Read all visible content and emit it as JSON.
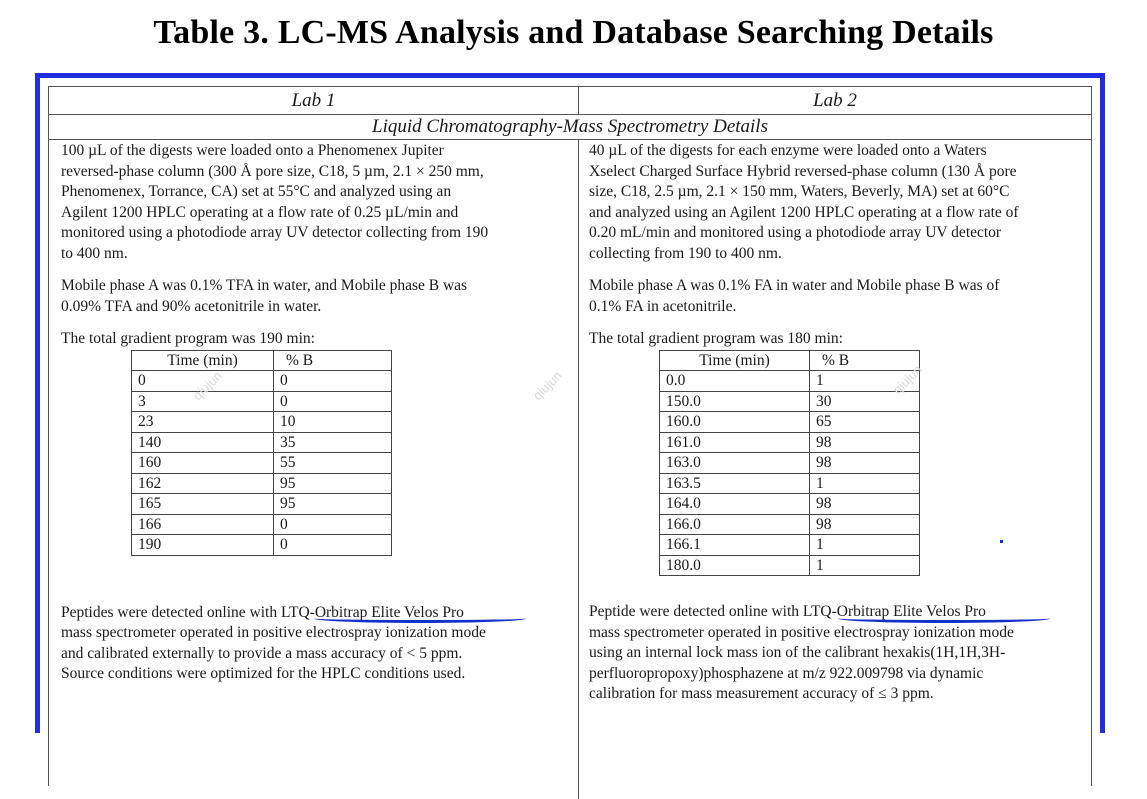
{
  "title": "Table 3. LC-MS Analysis and Database Searching Details",
  "columns": {
    "left_header": "Lab 1",
    "right_header": "Lab 2"
  },
  "section_title": "Liquid Chromatography-Mass Spectrometry Details",
  "lab1": {
    "para1_lines": [
      "100 µL of the digests were loaded onto a Phenomenex Jupiter",
      "reversed-phase column (300 Å pore size, C18, 5 µm, 2.1 × 250 mm,",
      "Phenomenex, Torrance, CA) set at 55°C and analyzed using an",
      "Agilent 1200 HPLC operating at a flow rate of 0.25 µL/min and",
      "monitored using a photodiode array UV detector collecting from 190",
      "to 400 nm."
    ],
    "para2_lines": [
      "Mobile phase A was 0.1% TFA in water, and Mobile phase B was",
      "0.09% TFA and 90% acetonitrile in water."
    ],
    "gradient_text": "The total gradient program was 190 min:",
    "gradient_headers": [
      "Time (min)",
      "% B"
    ],
    "gradient_rows": [
      [
        "0",
        "0"
      ],
      [
        "3",
        "0"
      ],
      [
        "23",
        "10"
      ],
      [
        "140",
        "35"
      ],
      [
        "160",
        "55"
      ],
      [
        "162",
        "95"
      ],
      [
        "165",
        "95"
      ],
      [
        "166",
        "0"
      ],
      [
        "190",
        "0"
      ]
    ],
    "para3_lines": [
      "Peptides were detected online with LTQ-Orbitrap Elite Velos Pro",
      "mass spectrometer operated in positive electrospray ionization mode",
      "and calibrated externally to provide a mass accuracy of < 5 ppm.",
      "Source conditions were optimized for the HPLC conditions used."
    ]
  },
  "lab2": {
    "para1_lines": [
      "40 µL of the digests for each enzyme were loaded onto a Waters",
      "Xselect Charged Surface Hybrid reversed-phase column (130 Å pore",
      "size, C18, 2.5 µm, 2.1 × 150 mm, Waters, Beverly, MA) set at 60°C",
      "and analyzed using an Agilent 1200 HPLC operating at a flow rate of",
      "0.20 mL/min and monitored using a photodiode array UV detector",
      "collecting from 190 to 400 nm."
    ],
    "para2_lines": [
      "Mobile phase A was 0.1% FA in water and Mobile phase B was of",
      "0.1% FA in acetonitrile."
    ],
    "gradient_text": "The total gradient program was 180 min:",
    "gradient_headers": [
      "Time (min)",
      "% B"
    ],
    "gradient_rows": [
      [
        "0.0",
        "1"
      ],
      [
        "150.0",
        "30"
      ],
      [
        "160.0",
        "65"
      ],
      [
        "161.0",
        "98"
      ],
      [
        "163.0",
        "98"
      ],
      [
        "163.5",
        "1"
      ],
      [
        "164.0",
        "98"
      ],
      [
        "166.0",
        "98"
      ],
      [
        "166.1",
        "1"
      ],
      [
        "180.0",
        "1"
      ]
    ],
    "para3_lines": [
      "Peptide were detected online with LTQ-Orbitrap Elite Velos Pro",
      "mass spectrometer operated in positive electrospray ionization mode",
      "using an internal lock mass ion of the calibrant hexakis(1H,1H,3H-",
      "perfluoropropoxy)phosphazene at m/z 922.009798 via dynamic",
      "calibration for mass measurement accuracy of ≤ 3 ppm."
    ]
  },
  "watermark_text": "qiujun",
  "colors": {
    "frame_border": "#1f2ee0",
    "pen_underline": "#1330c8"
  }
}
